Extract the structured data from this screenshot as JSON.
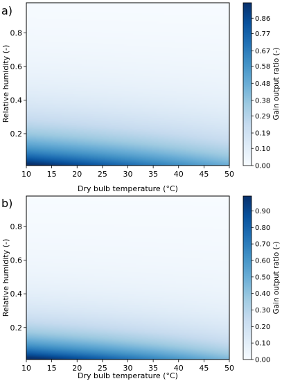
{
  "chart_data": [
    {
      "type": "heatmap",
      "panel_label": "a)",
      "xlabel": "Dry bulb temperature (°C)",
      "ylabel": "Relative humidity (-)",
      "colorbar_label": "Gain output ratio (-)",
      "xlim": [
        10,
        50
      ],
      "ylim": [
        0.01,
        0.98
      ],
      "xticks": [
        "10",
        "15",
        "20",
        "25",
        "30",
        "35",
        "40",
        "45",
        "50"
      ],
      "yticks": [
        "0.2",
        "0.4",
        "0.6",
        "0.8"
      ],
      "yticks_values": [
        0.2,
        0.4,
        0.6,
        0.8
      ],
      "colorbar_range": [
        0,
        0.95
      ],
      "colorbar_ticks": [
        "0.00",
        "0.10",
        "0.19",
        "0.29",
        "0.38",
        "0.48",
        "0.58",
        "0.67",
        "0.77",
        "0.86"
      ],
      "colorbar_tick_values": [
        0.0,
        0.1,
        0.19,
        0.29,
        0.38,
        0.48,
        0.58,
        0.67,
        0.77,
        0.86
      ],
      "colormap": "Blues",
      "colors": {
        "low": "#f7fbff",
        "high": "#08306b"
      },
      "grid": false
    },
    {
      "type": "heatmap",
      "panel_label": "b)",
      "xlabel": "Dry bulb temperature (°C)",
      "ylabel": "Relative humidity (-)",
      "colorbar_label": "Gain output ratio (-)",
      "xlim": [
        10,
        50
      ],
      "ylim": [
        0.01,
        0.98
      ],
      "xticks": [
        "10",
        "15",
        "20",
        "25",
        "30",
        "35",
        "40",
        "45",
        "50"
      ],
      "yticks": [
        "0.2",
        "0.4",
        "0.6",
        "0.8"
      ],
      "yticks_values": [
        0.2,
        0.4,
        0.6,
        0.8
      ],
      "colorbar_range": [
        0,
        0.99
      ],
      "colorbar_ticks": [
        "0.00",
        "0.10",
        "0.20",
        "0.30",
        "0.40",
        "0.50",
        "0.60",
        "0.70",
        "0.80",
        "0.90"
      ],
      "colorbar_tick_values": [
        0.0,
        0.1,
        0.2,
        0.3,
        0.4,
        0.5,
        0.6,
        0.7,
        0.8,
        0.9
      ],
      "colormap": "Blues",
      "colors": {
        "low": "#f7fbff",
        "high": "#08306b"
      },
      "grid": false
    }
  ]
}
